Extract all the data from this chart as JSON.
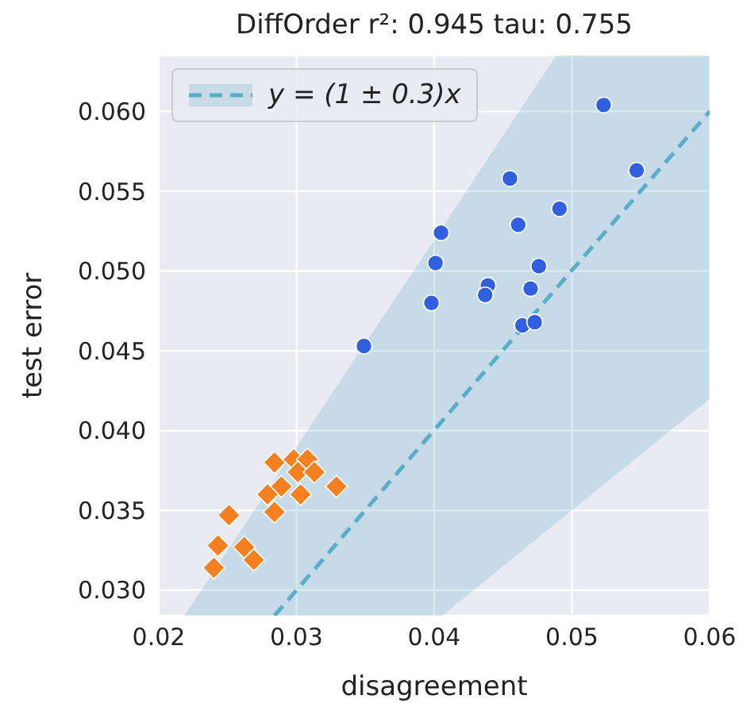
{
  "chart_data": {
    "type": "scatter",
    "title": "DiffOrder r²: 0.945 tau: 0.755",
    "xlabel": "disagreement",
    "ylabel": "test error",
    "xlim": [
      0.02,
      0.06
    ],
    "xticks": [
      0.02,
      0.03,
      0.04,
      0.05,
      0.06
    ],
    "ylim": [
      0.0284,
      0.0635
    ],
    "yticks": [
      {
        "value": 0.03,
        "label": "0.030"
      },
      0.035,
      {
        "value": 0.04,
        "label": "0.040"
      },
      0.045,
      {
        "value": 0.05,
        "label": "0.050"
      },
      0.055,
      {
        "value": 0.06,
        "label": "0.060"
      }
    ],
    "grid": true,
    "legend": "top left",
    "series": [
      {
        "type": "line",
        "name": "y = (1 ± 0.3)x",
        "color": "#5aaec8",
        "x": [
          0.02185,
          0.0284,
          0.04057,
          0.04885,
          0.06
        ],
        "values": [
          null,
          0.0284,
          0.0406,
          0.0489,
          0.06
        ],
        "lower": [
          0.0284,
          0.0284,
          0.0284,
          0.0342,
          0.042
        ],
        "upper": [
          0.0284,
          0.0369,
          0.0527,
          0.0635,
          0.0635
        ],
        "line_style": "dashed",
        "marker": "none"
      },
      {
        "color": "#3060e0",
        "marker": "circle",
        "x": [
          0.0523,
          0.0547,
          0.0455,
          0.0491,
          0.0461,
          0.0405,
          0.0401,
          0.0476,
          0.0439,
          0.0437,
          0.047,
          0.0398,
          0.0464,
          0.0473,
          0.0349
        ],
        "values": [
          0.0604,
          0.0563,
          0.0558,
          0.0539,
          0.0529,
          0.0524,
          0.0505,
          0.0503,
          0.0491,
          0.0485,
          0.0489,
          0.048,
          0.0466,
          0.0468,
          0.0453
        ]
      },
      {
        "color": "#f58020",
        "marker": "diamond",
        "x": [
          0.0284,
          0.0298,
          0.0308,
          0.0301,
          0.0313,
          0.0289,
          0.0279,
          0.0303,
          0.0329,
          0.0284,
          0.0251,
          0.0243,
          0.0262,
          0.0269,
          0.024
        ],
        "values": [
          0.038,
          0.0382,
          0.0382,
          0.0374,
          0.0374,
          0.0365,
          0.036,
          0.036,
          0.0365,
          0.0349,
          0.0347,
          0.0328,
          0.0327,
          0.0319,
          0.0314
        ]
      }
    ]
  }
}
